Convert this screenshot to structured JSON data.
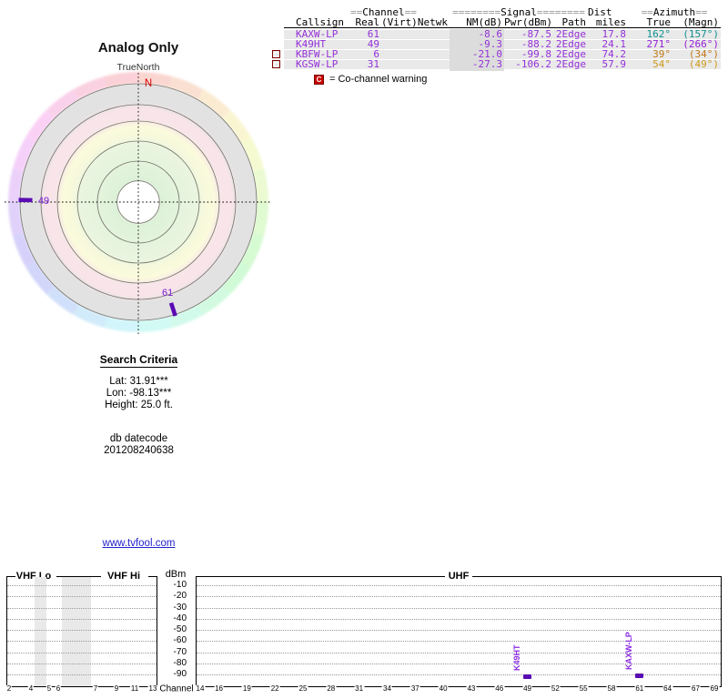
{
  "colors": {
    "accent_purple": "#9430d8",
    "marker_purple": "#5a0bb4",
    "marker_label_purple": "#7a1ed0",
    "warning_red": "#c80000",
    "link_blue": "#2222cc",
    "north_red": "#d40000"
  },
  "table": {
    "group_header": {
      "channel": {
        "pre": "==",
        "label": "Channel",
        "post": "=="
      },
      "signal": {
        "pre": "========",
        "label": "Signal",
        "post": "========"
      },
      "dist": "Dist",
      "azimuth": {
        "pre": "==",
        "label": "Azimuth",
        "post": "=="
      }
    },
    "columns": [
      "Callsign",
      "Real",
      "(Virt)",
      "Netwk",
      "NM(dB)",
      "Pwr(dBm)",
      "Path",
      "miles",
      "True",
      "(Magn)"
    ],
    "rows": [
      {
        "cochannel": false,
        "callsign": "KAXW-LP",
        "real": "61",
        "virt": "",
        "netwk": "",
        "nm": "-8.6",
        "pwr": "-87.5",
        "path": "2Edge",
        "miles": "17.8",
        "true_az": "162°",
        "magn": "(157°)",
        "az_color": "#0e8f8f"
      },
      {
        "cochannel": false,
        "callsign": "K49HT",
        "real": "49",
        "virt": "",
        "netwk": "",
        "nm": "-9.3",
        "pwr": "-88.2",
        "path": "2Edge",
        "miles": "24.1",
        "true_az": "271°",
        "magn": "(266°)",
        "az_color": "#9420d6"
      },
      {
        "cochannel": true,
        "callsign": "KBFW-LP",
        "real": "6",
        "virt": "",
        "netwk": "",
        "nm": "-21.0",
        "pwr": "-99.8",
        "path": "2Edge",
        "miles": "74.2",
        "true_az": "39°",
        "magn": "(34°)",
        "az_color": "#c07818"
      },
      {
        "cochannel": true,
        "callsign": "KGSW-LP",
        "real": "31",
        "virt": "",
        "netwk": "",
        "nm": "-27.3",
        "pwr": "-106.2",
        "path": "2Edge",
        "miles": "57.9",
        "true_az": "54°",
        "magn": "(49°)",
        "az_color": "#cc9a1a"
      }
    ],
    "legend": {
      "symbol": "C",
      "text": "= Co-channel warning"
    }
  },
  "search_criteria": {
    "title": "Search Criteria",
    "lat": "Lat: 31.91***",
    "lon": "Lon: -98.13***",
    "height": "Height: 25.0 ft.",
    "db_label": "db datecode",
    "db_code": "201208240638"
  },
  "footer_link": "www.tvfool.com",
  "chart_data": [
    {
      "type": "radar",
      "title": "Analog Only",
      "north_label": "TrueNorth",
      "north_marker": "N",
      "notes": "polar azimuth plot, hue wheel rim, rings from center: white, green, green, yellow, pink, gray",
      "markers": [
        {
          "label": "49",
          "azimuth_true_deg": 271
        },
        {
          "label": "61",
          "azimuth_true_deg": 162
        }
      ]
    },
    {
      "type": "scatter",
      "band_labels": {
        "vhf_lo": "VHF Lo",
        "vhf_hi": "VHF Hi",
        "uhf": "UHF"
      },
      "ylabel": "dBm",
      "xlabel": "Channel",
      "ylim": [
        -95,
        -5
      ],
      "yticks": [
        "-10",
        "-20",
        "-30",
        "-40",
        "-50",
        "-60",
        "-70",
        "-80",
        "-90"
      ],
      "vhf_channel_ticks": [
        2,
        4,
        5,
        6,
        7,
        9,
        11,
        13
      ],
      "uhf_channel_ticks": [
        14,
        16,
        19,
        22,
        25,
        28,
        31,
        34,
        37,
        40,
        43,
        46,
        49,
        52,
        55,
        58,
        61,
        64,
        67,
        69
      ],
      "points": [
        {
          "label": "K49HT",
          "channel": 49,
          "dbm": -88.2
        },
        {
          "label": "KAXW-LP",
          "channel": 61,
          "dbm": -87.5
        }
      ]
    }
  ]
}
